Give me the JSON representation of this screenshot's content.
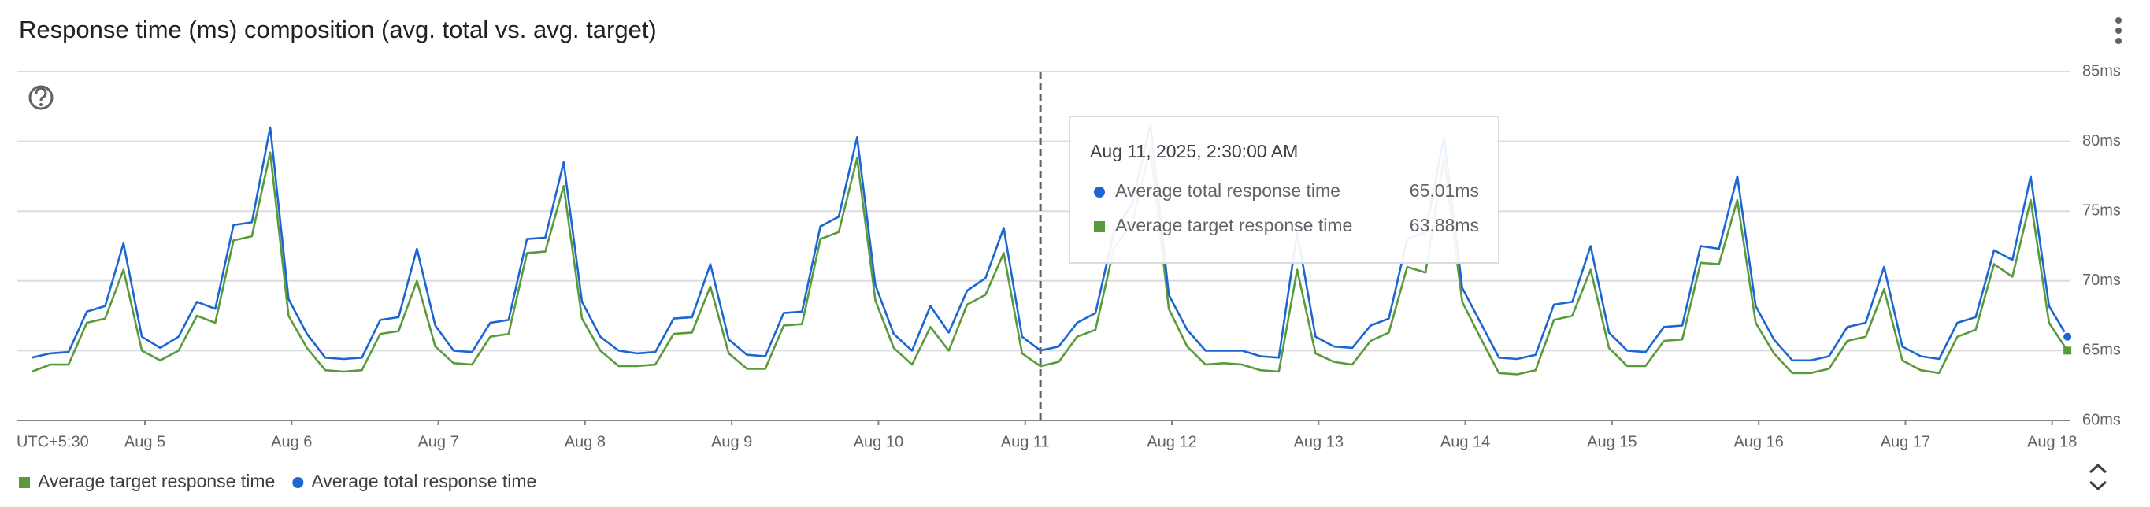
{
  "chart_data": {
    "type": "line",
    "title": "Response time (ms) composition (avg. total vs. avg. target)",
    "timezone_label": "UTC+5:30",
    "x": [
      "2025-08-04T05:30",
      "2025-08-04T08:30",
      "2025-08-04T11:30",
      "2025-08-04T14:30",
      "2025-08-04T17:30",
      "2025-08-04T20:30",
      "2025-08-04T23:30",
      "2025-08-05T02:30",
      "2025-08-05T05:30",
      "2025-08-05T08:30",
      "2025-08-05T11:30",
      "2025-08-05T14:30",
      "2025-08-05T17:30",
      "2025-08-05T20:30",
      "2025-08-05T23:30",
      "2025-08-06T02:30",
      "2025-08-06T05:30",
      "2025-08-06T08:30",
      "2025-08-06T11:30",
      "2025-08-06T14:30",
      "2025-08-06T17:30",
      "2025-08-06T20:30",
      "2025-08-06T23:30",
      "2025-08-07T02:30",
      "2025-08-07T05:30",
      "2025-08-07T08:30",
      "2025-08-07T11:30",
      "2025-08-07T14:30",
      "2025-08-07T17:30",
      "2025-08-07T20:30",
      "2025-08-07T23:30",
      "2025-08-08T02:30",
      "2025-08-08T05:30",
      "2025-08-08T08:30",
      "2025-08-08T11:30",
      "2025-08-08T14:30",
      "2025-08-08T17:30",
      "2025-08-08T20:30",
      "2025-08-08T23:30",
      "2025-08-09T02:30",
      "2025-08-09T05:30",
      "2025-08-09T08:30",
      "2025-08-09T11:30",
      "2025-08-09T14:30",
      "2025-08-09T17:30",
      "2025-08-09T20:30",
      "2025-08-09T23:30",
      "2025-08-10T02:30",
      "2025-08-10T05:30",
      "2025-08-10T08:30",
      "2025-08-10T11:30",
      "2025-08-10T14:30",
      "2025-08-10T17:30",
      "2025-08-10T20:30",
      "2025-08-10T23:30",
      "2025-08-11T02:30",
      "2025-08-11T05:30",
      "2025-08-11T08:30",
      "2025-08-11T11:30",
      "2025-08-11T14:30",
      "2025-08-11T17:30",
      "2025-08-11T20:30",
      "2025-08-11T23:30",
      "2025-08-12T02:30",
      "2025-08-12T05:30",
      "2025-08-12T08:30",
      "2025-08-12T11:30",
      "2025-08-12T14:30",
      "2025-08-12T17:30",
      "2025-08-12T20:30",
      "2025-08-12T23:30",
      "2025-08-13T02:30",
      "2025-08-13T05:30",
      "2025-08-13T08:30",
      "2025-08-13T11:30",
      "2025-08-13T14:30",
      "2025-08-13T17:30",
      "2025-08-13T20:30",
      "2025-08-13T23:30",
      "2025-08-14T02:30",
      "2025-08-14T05:30",
      "2025-08-14T08:30",
      "2025-08-14T11:30",
      "2025-08-14T14:30",
      "2025-08-14T17:30",
      "2025-08-14T20:30",
      "2025-08-14T23:30",
      "2025-08-15T02:30",
      "2025-08-15T05:30",
      "2025-08-15T08:30",
      "2025-08-15T11:30",
      "2025-08-15T14:30",
      "2025-08-15T17:30",
      "2025-08-15T20:30",
      "2025-08-15T23:30",
      "2025-08-16T02:30",
      "2025-08-16T05:30",
      "2025-08-16T08:30",
      "2025-08-16T11:30",
      "2025-08-16T14:30",
      "2025-08-16T17:30",
      "2025-08-16T20:30",
      "2025-08-16T23:30",
      "2025-08-17T02:30",
      "2025-08-17T05:30",
      "2025-08-17T08:30",
      "2025-08-17T11:30",
      "2025-08-17T14:30",
      "2025-08-17T17:30",
      "2025-08-17T20:30",
      "2025-08-17T23:30",
      "2025-08-18T02:30"
    ],
    "series": [
      {
        "name": "Average target response time",
        "color": "#5b9a3a",
        "marker": "square",
        "values": [
          63.5,
          64.0,
          64.0,
          67.0,
          67.3,
          70.8,
          65.0,
          64.3,
          65.0,
          67.5,
          67.0,
          72.9,
          73.2,
          79.2,
          67.5,
          65.2,
          63.6,
          63.5,
          63.6,
          66.2,
          66.4,
          70.0,
          65.3,
          64.1,
          64.0,
          66.0,
          66.2,
          72.0,
          72.1,
          76.8,
          67.3,
          65.0,
          63.9,
          63.9,
          64.0,
          66.2,
          66.3,
          69.6,
          64.8,
          63.7,
          63.7,
          66.8,
          66.9,
          73.0,
          73.5,
          78.8,
          68.6,
          65.2,
          64.0,
          66.7,
          65.0,
          68.3,
          69.0,
          72.0,
          64.8,
          63.88,
          64.2,
          66.0,
          66.5,
          72.3,
          74.2,
          79.5,
          68.0,
          65.3,
          64.0,
          64.1,
          64.0,
          63.6,
          63.5,
          70.8,
          64.8,
          64.2,
          64.0,
          65.7,
          66.3,
          71.0,
          70.6,
          78.8,
          68.5,
          65.9,
          63.4,
          63.3,
          63.6,
          67.2,
          67.5,
          70.8,
          65.2,
          63.9,
          63.9,
          65.7,
          65.8,
          71.3,
          71.2,
          75.8,
          67.0,
          64.8,
          63.4,
          63.4,
          63.7,
          65.7,
          66.0,
          69.4,
          64.3,
          63.6,
          63.4,
          66.0,
          66.5,
          71.2,
          70.3,
          75.8,
          67.0,
          65.0
        ]
      },
      {
        "name": "Average total response time",
        "color": "#1a66d2",
        "marker": "circle",
        "values": [
          64.5,
          64.8,
          64.9,
          67.8,
          68.2,
          72.7,
          66.0,
          65.2,
          66.0,
          68.5,
          68.0,
          74.0,
          74.2,
          81.0,
          68.7,
          66.2,
          64.5,
          64.4,
          64.5,
          67.2,
          67.4,
          72.3,
          66.8,
          65.0,
          64.9,
          67.0,
          67.2,
          73.0,
          73.1,
          78.5,
          68.5,
          66.0,
          65.0,
          64.8,
          64.9,
          67.3,
          67.4,
          71.2,
          65.8,
          64.7,
          64.6,
          67.7,
          67.8,
          73.9,
          74.6,
          80.3,
          69.7,
          66.2,
          65.0,
          68.2,
          66.3,
          69.3,
          70.2,
          73.8,
          66.0,
          65.01,
          65.3,
          67.0,
          67.7,
          73.5,
          75.5,
          81.2,
          69.0,
          66.5,
          65.0,
          65.0,
          65.0,
          64.6,
          64.5,
          73.5,
          66.0,
          65.3,
          65.2,
          66.8,
          67.3,
          73.0,
          73.5,
          80.3,
          69.5,
          67.0,
          64.5,
          64.4,
          64.7,
          68.3,
          68.5,
          72.5,
          66.3,
          65.0,
          64.9,
          66.7,
          66.8,
          72.5,
          72.3,
          77.5,
          68.2,
          65.8,
          64.3,
          64.3,
          64.6,
          66.7,
          67.0,
          71.0,
          65.3,
          64.6,
          64.4,
          67.0,
          67.4,
          72.2,
          71.5,
          77.5,
          68.2,
          66.0
        ]
      }
    ],
    "xlim": [
      "2025-08-04T03:00",
      "2025-08-18T03:00"
    ],
    "xticks": [
      {
        "value": "2025-08-05T00:00",
        "label": "Aug 5"
      },
      {
        "value": "2025-08-06T00:00",
        "label": "Aug 6"
      },
      {
        "value": "2025-08-07T00:00",
        "label": "Aug 7"
      },
      {
        "value": "2025-08-08T00:00",
        "label": "Aug 8"
      },
      {
        "value": "2025-08-09T00:00",
        "label": "Aug 9"
      },
      {
        "value": "2025-08-10T00:00",
        "label": "Aug 10"
      },
      {
        "value": "2025-08-11T00:00",
        "label": "Aug 11"
      },
      {
        "value": "2025-08-12T00:00",
        "label": "Aug 12"
      },
      {
        "value": "2025-08-13T00:00",
        "label": "Aug 13"
      },
      {
        "value": "2025-08-14T00:00",
        "label": "Aug 14"
      },
      {
        "value": "2025-08-15T00:00",
        "label": "Aug 15"
      },
      {
        "value": "2025-08-16T00:00",
        "label": "Aug 16"
      },
      {
        "value": "2025-08-17T00:00",
        "label": "Aug 17"
      },
      {
        "value": "2025-08-18T00:00",
        "label": "Aug 18"
      }
    ],
    "ylim": [
      60,
      85
    ],
    "yticks": [
      {
        "value": 60,
        "label": "60ms"
      },
      {
        "value": 65,
        "label": "65ms"
      },
      {
        "value": 70,
        "label": "70ms"
      },
      {
        "value": 75,
        "label": "75ms"
      },
      {
        "value": 80,
        "label": "80ms"
      },
      {
        "value": 85,
        "label": "85ms"
      }
    ],
    "grid": true,
    "legend": "bottom-left",
    "tooltip": {
      "x": "2025-08-11T02:30",
      "label": "Aug 11, 2025, 2:30:00 AM",
      "value_labels": [
        "63.88ms",
        "65.01ms"
      ]
    }
  }
}
